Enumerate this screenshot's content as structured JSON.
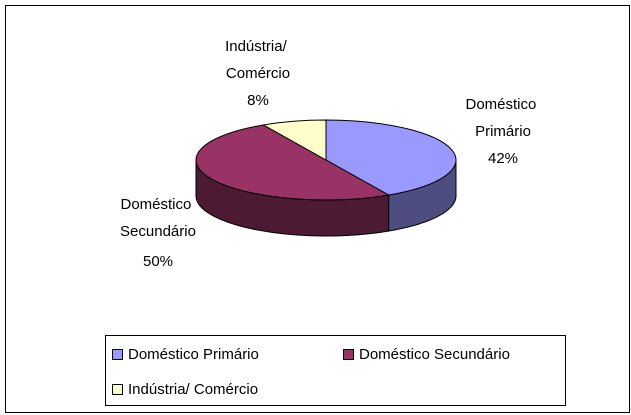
{
  "chart_data": {
    "type": "pie",
    "categories": [
      "Doméstico Primário",
      "Doméstico Secundário",
      "Indústria/ Comércio"
    ],
    "values": [
      42,
      50,
      8
    ],
    "value_labels": [
      "42%",
      "50%",
      "8%"
    ],
    "colors": [
      "#9999ff",
      "#993366",
      "#ffffcc"
    ],
    "legend": "bottom"
  }
}
